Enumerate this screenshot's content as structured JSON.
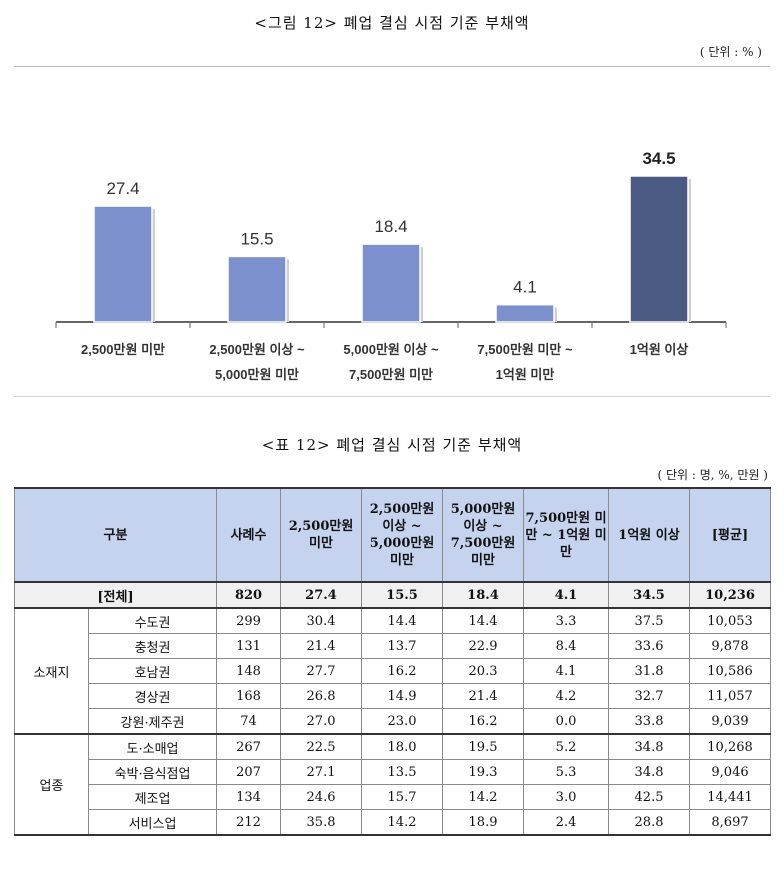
{
  "figure": {
    "title": "<그림 12> 폐업 결심 시점 기준 부채액",
    "unit": "( 단위 : % )"
  },
  "chart_data": {
    "type": "bar",
    "categories": [
      [
        "2,500만원 미만"
      ],
      [
        "2,500만원 이상 ~",
        "5,000만원 미만"
      ],
      [
        "5,000만원 이상 ~",
        "7,500만원 미만"
      ],
      [
        "7,500만원 미만 ~",
        "1억원 미만"
      ],
      [
        "1억원 이상"
      ]
    ],
    "values": [
      27.4,
      15.5,
      18.4,
      4.1,
      34.5
    ],
    "value_labels": [
      "27.4",
      "15.5",
      "18.4",
      "4.1",
      "34.5"
    ],
    "highlight_index": 4,
    "colors": {
      "bar": "#7b90cc",
      "highlight": "#4a5a82",
      "axis": "#666666"
    },
    "ylim": [
      0,
      40
    ]
  },
  "table": {
    "title": "<표 12> 폐업 결심 시점 기준 부채액",
    "unit": "( 단위 : 명, %, 만원 )",
    "headers": [
      "구분",
      "사례수",
      "2,500만원 미만",
      "2,500만원 이상 ~ 5,000만원 미만",
      "5,000만원 이상 ~ 7,500만원 미만",
      "7,500만원 미만 ~ 1억원 미만",
      "1억원 이상",
      "[평균]"
    ],
    "total": {
      "label": "[전체]",
      "values": [
        "820",
        "27.4",
        "15.5",
        "18.4",
        "4.1",
        "34.5",
        "10,236"
      ]
    },
    "groups": [
      {
        "name": "소재지",
        "rows": [
          {
            "label": "수도권",
            "values": [
              "299",
              "30.4",
              "14.4",
              "14.4",
              "3.3",
              "37.5",
              "10,053"
            ]
          },
          {
            "label": "충청권",
            "values": [
              "131",
              "21.4",
              "13.7",
              "22.9",
              "8.4",
              "33.6",
              "9,878"
            ]
          },
          {
            "label": "호남권",
            "values": [
              "148",
              "27.7",
              "16.2",
              "20.3",
              "4.1",
              "31.8",
              "10,586"
            ]
          },
          {
            "label": "경상권",
            "values": [
              "168",
              "26.8",
              "14.9",
              "21.4",
              "4.2",
              "32.7",
              "11,057"
            ]
          },
          {
            "label": "강원·제주권",
            "values": [
              "74",
              "27.0",
              "23.0",
              "16.2",
              "0.0",
              "33.8",
              "9,039"
            ]
          }
        ]
      },
      {
        "name": "업종",
        "rows": [
          {
            "label": "도·소매업",
            "values": [
              "267",
              "22.5",
              "18.0",
              "19.5",
              "5.2",
              "34.8",
              "10,268"
            ]
          },
          {
            "label": "숙박·음식점업",
            "values": [
              "207",
              "27.1",
              "13.5",
              "19.3",
              "5.3",
              "34.8",
              "9,046"
            ]
          },
          {
            "label": "제조업",
            "values": [
              "134",
              "24.6",
              "15.7",
              "14.2",
              "3.0",
              "42.5",
              "14,441"
            ]
          },
          {
            "label": "서비스업",
            "values": [
              "212",
              "35.8",
              "14.2",
              "18.9",
              "2.4",
              "28.8",
              "8,697"
            ]
          }
        ]
      }
    ]
  }
}
